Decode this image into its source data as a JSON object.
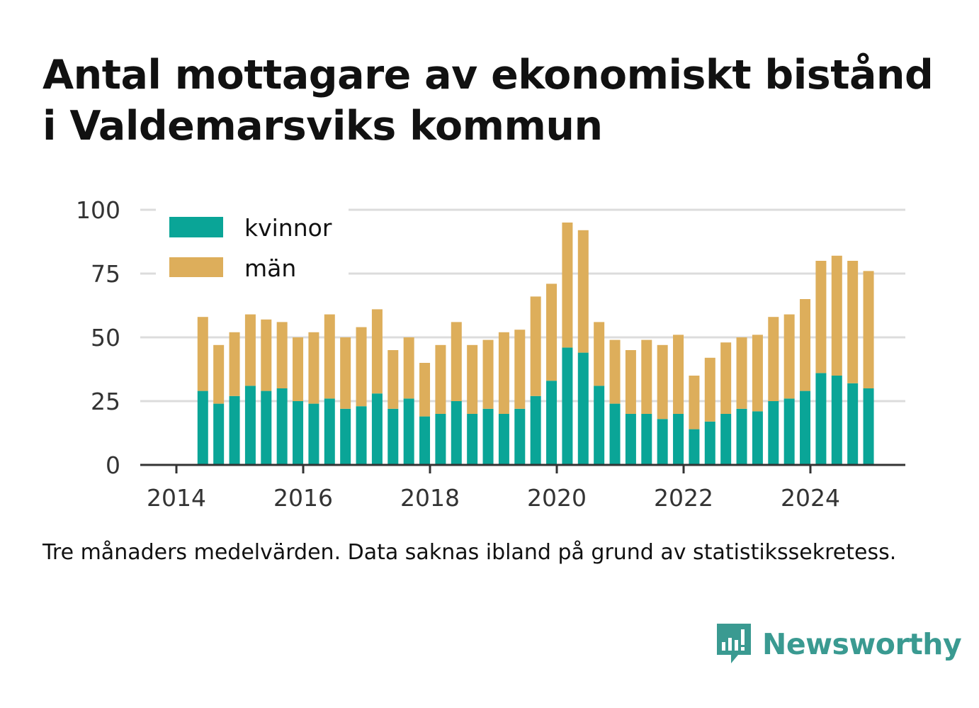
{
  "title": "Antal mottagare av ekonomiskt bistånd i Valdemarsviks kommun",
  "caption": "Tre månaders medelvärden. Data saknas ibland på grund av statistikssekretess.",
  "brand": {
    "name": "Newsworthy",
    "logo_icon": "newsworthy-bar-chart-speech-bubble-icon"
  },
  "colors": {
    "kvinnor": "#0aa597",
    "man": "#ddae5b",
    "grid": "#dcdcdc",
    "axis": "#333333",
    "brand": "#3a9a91"
  },
  "chart_data": {
    "type": "bar",
    "stacked": true,
    "title": "Antal mottagare av ekonomiskt bistånd i Valdemarsviks kommun",
    "xlabel": "",
    "ylabel": "",
    "ylim": [
      0,
      100
    ],
    "yticks": [
      0,
      25,
      50,
      75,
      100
    ],
    "xticks": [
      "2014",
      "2016",
      "2018",
      "2020",
      "2022",
      "2024"
    ],
    "grid": true,
    "legend_position": "top-left",
    "x": [
      "2014-06",
      "2014-09",
      "2014-12",
      "2015-03",
      "2015-06",
      "2015-09",
      "2015-12",
      "2016-03",
      "2016-06",
      "2016-09",
      "2016-12",
      "2017-03",
      "2017-06",
      "2017-09",
      "2017-12",
      "2018-03",
      "2018-06",
      "2018-09",
      "2018-12",
      "2019-03",
      "2019-06",
      "2019-09",
      "2019-12",
      "2020-03",
      "2020-06",
      "2020-09",
      "2020-12",
      "2021-03",
      "2021-06",
      "2021-09",
      "2021-12",
      "2022-03",
      "2022-06",
      "2022-09",
      "2022-12",
      "2023-03",
      "2023-06",
      "2023-09",
      "2023-12",
      "2024-03",
      "2024-06",
      "2024-09",
      "2024-12"
    ],
    "series": [
      {
        "name": "kvinnor",
        "color": "#0aa597",
        "values": [
          29,
          24,
          27,
          31,
          29,
          30,
          25,
          24,
          26,
          22,
          23,
          28,
          22,
          26,
          19,
          20,
          25,
          20,
          22,
          20,
          22,
          27,
          33,
          46,
          44,
          31,
          24,
          20,
          20,
          18,
          20,
          14,
          17,
          20,
          22,
          21,
          25,
          26,
          29,
          36,
          35,
          32,
          30
        ]
      },
      {
        "name": "män",
        "color": "#ddae5b",
        "values": [
          29,
          23,
          25,
          28,
          28,
          26,
          25,
          28,
          33,
          28,
          31,
          33,
          23,
          24,
          21,
          27,
          31,
          27,
          27,
          32,
          31,
          39,
          38,
          49,
          48,
          25,
          25,
          25,
          29,
          29,
          31,
          21,
          25,
          28,
          28,
          30,
          33,
          33,
          36,
          44,
          47,
          48,
          46
        ]
      }
    ]
  }
}
